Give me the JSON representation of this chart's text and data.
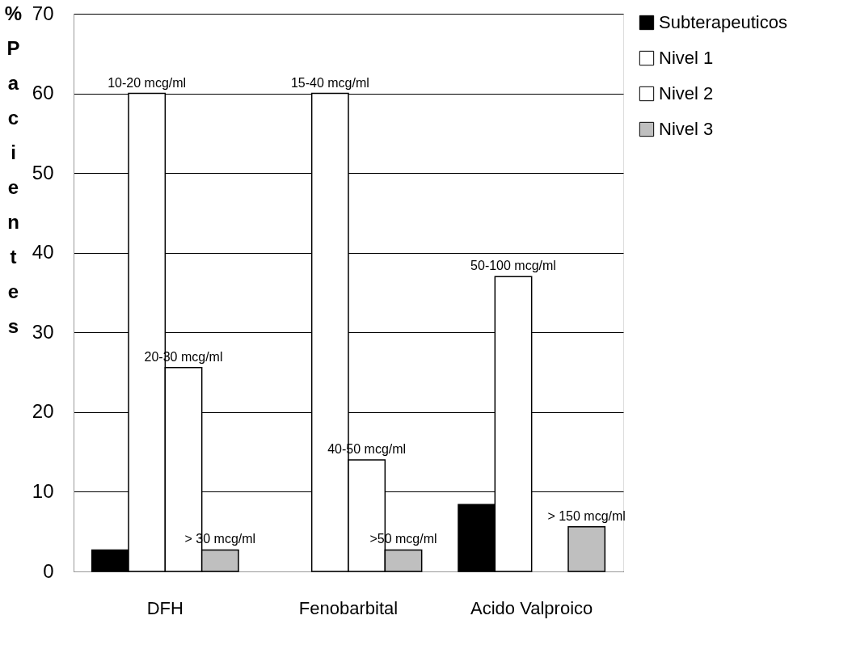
{
  "chart_data": {
    "type": "bar",
    "ylabel": "% Pacientes",
    "categories": [
      "DFH",
      "Fenobarbital",
      "Acido Valproico"
    ],
    "series": [
      {
        "name": "Subterapeuticos",
        "color": "#000000",
        "values": [
          2.7,
          null,
          8.4
        ]
      },
      {
        "name": "Nivel 1",
        "color": "#ffffff",
        "values": [
          60,
          60,
          37
        ]
      },
      {
        "name": "Nivel 2",
        "color": "#ffffff",
        "values": [
          25.6,
          14,
          null
        ]
      },
      {
        "name": "Nivel 3",
        "color": "#bfbfbf",
        "values": [
          2.7,
          2.7,
          5.6
        ]
      }
    ],
    "ylim": [
      0,
      70
    ],
    "yticks": [
      0,
      10,
      20,
      30,
      40,
      50,
      60,
      70
    ],
    "grid": "y",
    "legend": "right",
    "annotations": [
      {
        "text": "10-20 mcg/ml",
        "x": "DFH",
        "y": 60
      },
      {
        "text": "20-30 mcg/ml",
        "x": "DFH",
        "y": 25.6
      },
      {
        "text": "> 30 mcg/ml",
        "x": "DFH",
        "y": 2.7
      },
      {
        "text": "15-40 mcg/ml",
        "x": "Fenobarbital",
        "y": 60
      },
      {
        "text": "40-50 mcg/ml",
        "x": "Fenobarbital",
        "y": 14
      },
      {
        "text": ">50 mcg/ml",
        "x": "Fenobarbital",
        "y": 2.7
      },
      {
        "text": "50-100 mcg/ml",
        "x": "Acido Valproico",
        "y": 37
      },
      {
        "text": "> 150 mcg/ml",
        "x": "Acido Valproico",
        "y": 5.6
      }
    ]
  }
}
